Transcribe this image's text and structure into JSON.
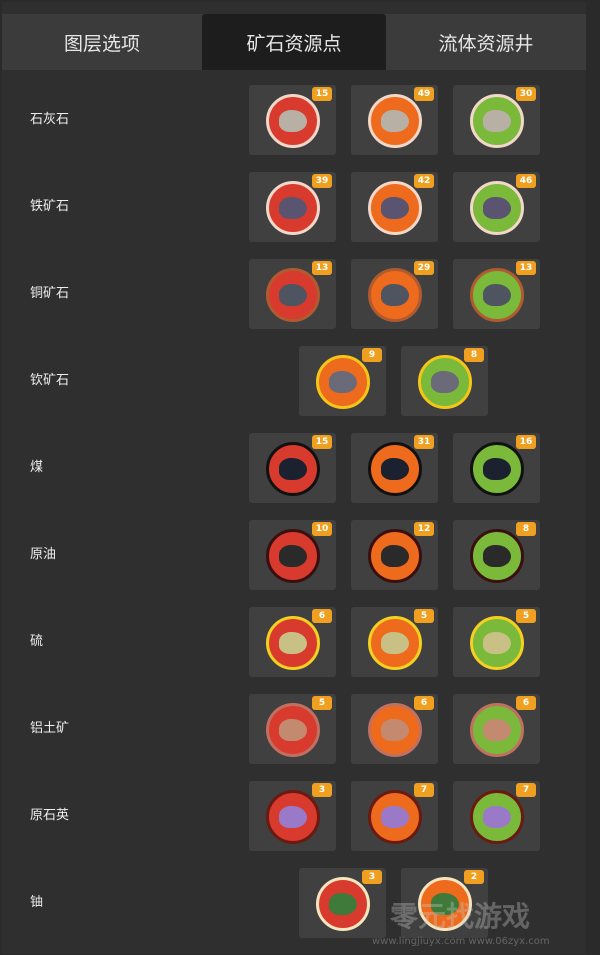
{
  "tabs": [
    {
      "label": "图层选项",
      "active": false
    },
    {
      "label": "矿石资源点",
      "active": true
    },
    {
      "label": "流体资源井",
      "active": false
    }
  ],
  "colors": {
    "red": "#d93a2e",
    "orange": "#ee6a1c",
    "green": "#7ab93a",
    "badge": "#f0a020",
    "active_tab": "#1d1d1d"
  },
  "resources": [
    {
      "name": "石灰石",
      "icon": "limestone-icon",
      "ore_color": "#b8b0a4",
      "ring": "#f3d7c8",
      "nodes": [
        {
          "purity": "red",
          "count": "15"
        },
        {
          "purity": "orange",
          "count": "49"
        },
        {
          "purity": "green",
          "count": "30"
        }
      ]
    },
    {
      "name": "铁矿石",
      "icon": "iron-ore-icon",
      "ore_color": "#5a5470",
      "ring": "#f3d7c8",
      "nodes": [
        {
          "purity": "red",
          "count": "39"
        },
        {
          "purity": "orange",
          "count": "42"
        },
        {
          "purity": "green",
          "count": "46"
        }
      ]
    },
    {
      "name": "铜矿石",
      "icon": "copper-ore-icon",
      "ore_color": "#4e5560",
      "ring": "#b05a30",
      "nodes": [
        {
          "purity": "red",
          "count": "13"
        },
        {
          "purity": "orange",
          "count": "29"
        },
        {
          "purity": "green",
          "count": "13"
        }
      ]
    },
    {
      "name": "钦矿石",
      "icon": "caterium-ore-icon",
      "ore_color": "#6a6a78",
      "ring": "#f5c518",
      "nodes": [
        {
          "purity": "orange",
          "count": "9"
        },
        {
          "purity": "green",
          "count": "8"
        }
      ]
    },
    {
      "name": "煤",
      "icon": "coal-icon",
      "ore_color": "#1c2130",
      "ring": "#111111",
      "nodes": [
        {
          "purity": "red",
          "count": "15"
        },
        {
          "purity": "orange",
          "count": "31"
        },
        {
          "purity": "green",
          "count": "16"
        }
      ]
    },
    {
      "name": "原油",
      "icon": "crude-oil-icon",
      "ore_color": "#2a2a2a",
      "ring": "#3a0f10",
      "nodes": [
        {
          "purity": "red",
          "count": "10"
        },
        {
          "purity": "orange",
          "count": "12"
        },
        {
          "purity": "green",
          "count": "8"
        }
      ]
    },
    {
      "name": "硫",
      "icon": "sulfur-icon",
      "ore_color": "#c8c084",
      "ring": "#f5d020",
      "nodes": [
        {
          "purity": "red",
          "count": "6"
        },
        {
          "purity": "orange",
          "count": "5"
        },
        {
          "purity": "green",
          "count": "5"
        }
      ]
    },
    {
      "name": "铝土矿",
      "icon": "bauxite-icon",
      "ore_color": "#c48a70",
      "ring": "#c07060",
      "nodes": [
        {
          "purity": "red",
          "count": "5"
        },
        {
          "purity": "orange",
          "count": "6"
        },
        {
          "purity": "green",
          "count": "6"
        }
      ]
    },
    {
      "name": "原石英",
      "icon": "raw-quartz-icon",
      "ore_color": "#9a7ac8",
      "ring": "#6a1a10",
      "nodes": [
        {
          "purity": "red",
          "count": "3"
        },
        {
          "purity": "orange",
          "count": "7"
        },
        {
          "purity": "green",
          "count": "7"
        }
      ]
    },
    {
      "name": "铀",
      "icon": "uranium-icon",
      "ore_color": "#3f7a3a",
      "ring": "#f5e6c0",
      "nodes": [
        {
          "purity": "red",
          "count": "3"
        },
        {
          "purity": "orange",
          "count": "2"
        }
      ]
    }
  ],
  "watermark": {
    "text": "零元找游戏",
    "url": "www.lingjiuyx.com  www.06zyx.com"
  }
}
